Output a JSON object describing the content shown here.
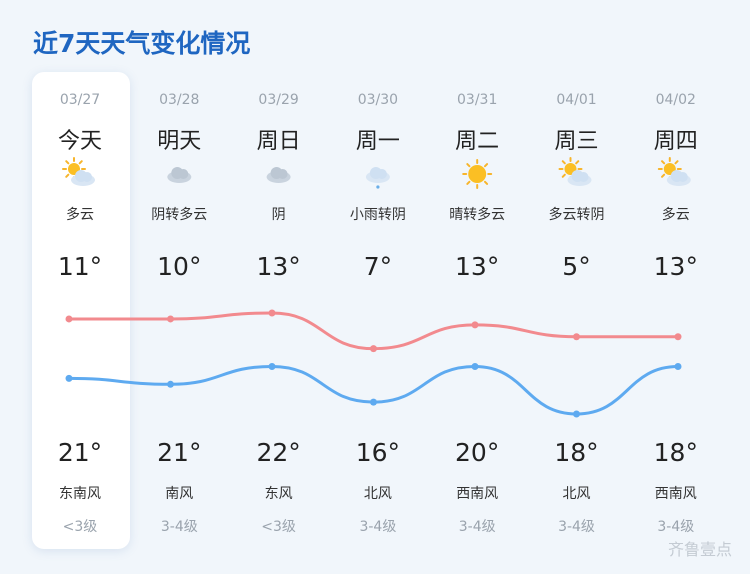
{
  "title": "近7天天气变化情况",
  "days": [
    {
      "date": "03/27",
      "day": "今天",
      "weather": "多云",
      "wind": "东南风",
      "level": "<3级"
    },
    {
      "date": "03/28",
      "day": "明天",
      "weather": "阴转多云",
      "wind": "南风",
      "level": "3-4级"
    },
    {
      "date": "03/29",
      "day": "周日",
      "weather": "阴",
      "wind": "东风",
      "level": "<3级"
    },
    {
      "date": "03/30",
      "day": "周一",
      "weather": "小雨转阴",
      "wind": "北风",
      "level": "3-4级"
    },
    {
      "date": "03/31",
      "day": "周二",
      "weather": "晴转多云",
      "wind": "西南风",
      "level": "3-4级"
    },
    {
      "date": "04/01",
      "day": "周三",
      "weather": "多云转阴",
      "wind": "北风",
      "level": "3-4级"
    },
    {
      "date": "04/02",
      "day": "周四",
      "weather": "多云",
      "wind": "西南风",
      "level": "3-4级"
    }
  ],
  "chart_data": {
    "type": "line",
    "series": [
      {
        "color": "#f28a8e",
        "values": [
          21,
          21,
          22,
          16,
          20,
          18,
          18
        ],
        "value_labels": [
          "21°",
          "21°",
          "22°",
          "16°",
          "20°",
          "18°",
          "18°"
        ]
      },
      {
        "color": "#5eaaf0",
        "values": [
          11,
          10,
          13,
          7,
          13,
          5,
          13
        ],
        "value_labels": [
          "11°",
          "10°",
          "13°",
          "7°",
          "13°",
          "5°",
          "13°"
        ]
      }
    ]
  },
  "watermark": "齐鲁壹点"
}
